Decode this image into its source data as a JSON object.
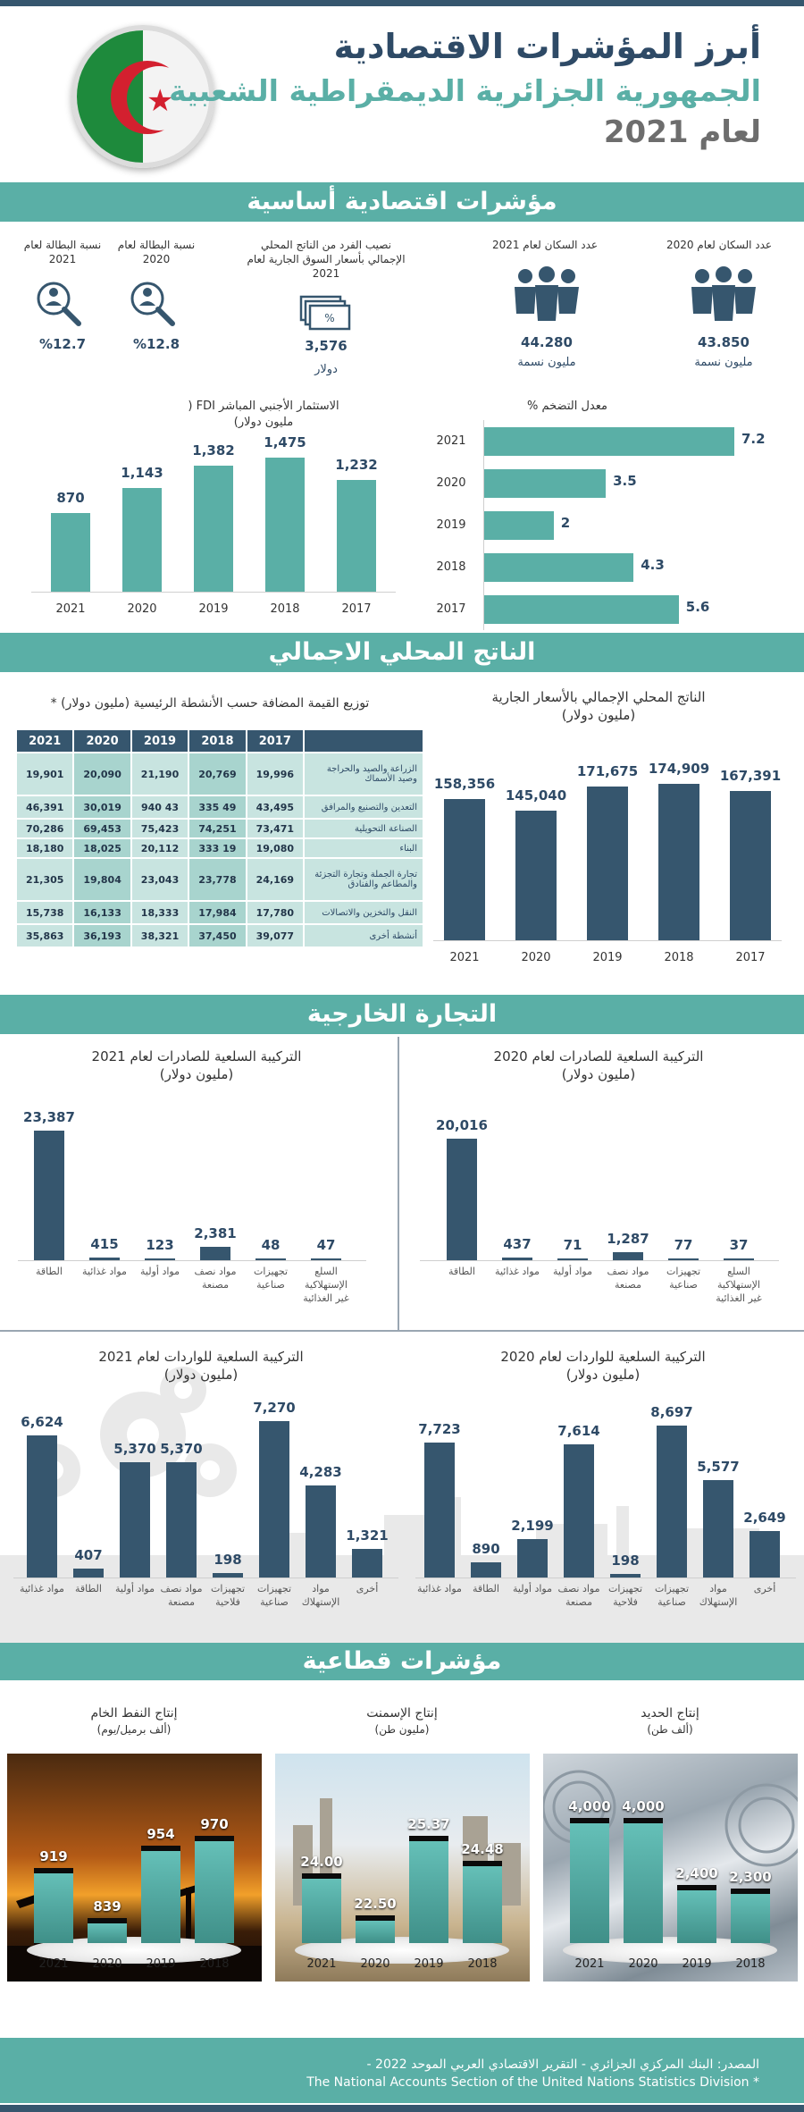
{
  "header": {
    "title": "أبرز المؤشرات الاقتصادية",
    "subtitle": "الجمهورية الجزائرية الديمقراطية الشعبية",
    "year": "لعام 2021"
  },
  "sections": {
    "basic": "مؤشرات اقتصادية أساسية",
    "gdp": "الناتج المحلي الاجمالي",
    "trade": "التجارة الخارجية",
    "sector": "مؤشرات قطاعية"
  },
  "indicators": {
    "pop2020": {
      "label": "عدد السكان لعام 2020",
      "value": "43.850",
      "unit": "مليون نسمة"
    },
    "pop2021": {
      "label": "عدد السكان لعام 2021",
      "value": "44.280",
      "unit": "مليون نسمة"
    },
    "gdppc": {
      "label": "نصيب الفرد من الناتج المحلي الإجمالي بأسعار السوق الجارية لعام 2021",
      "value": "3,576",
      "unit": "دولار"
    },
    "unemp2020": {
      "label": "نسبة البطالة لعام 2020",
      "value": "%12.8"
    },
    "unemp2021": {
      "label": "نسبة البطالة لعام 2021",
      "value": "%12.7"
    }
  },
  "colors": {
    "teal": "#5aafa6",
    "navy": "#36566e",
    "light_teal": "#c8e4e0"
  },
  "chart_data": [
    {
      "type": "bar",
      "title": "الاستثمار الأجنبي المباشر FDI ( مليون دولار)",
      "categories": [
        "2021",
        "2020",
        "2019",
        "2018",
        "2017"
      ],
      "values": [
        870,
        1143,
        1382,
        1475,
        1232
      ],
      "value_labels": [
        "870",
        "1,143",
        "1,382",
        "1,475",
        "1,232"
      ]
    },
    {
      "type": "bar",
      "orientation": "horizontal",
      "title": "معدل التضخم %",
      "categories": [
        "2021",
        "2020",
        "2019",
        "2018",
        "2017"
      ],
      "values": [
        7.2,
        3.5,
        2,
        4.3,
        5.6
      ],
      "value_labels": [
        "7.2",
        "3.5",
        "2",
        "4.3",
        "5.6"
      ]
    },
    {
      "type": "bar",
      "title": "الناتج المحلي الإجمالي بالأسعار الجارية (مليون دولار)",
      "categories": [
        "2021",
        "2020",
        "2019",
        "2018",
        "2017"
      ],
      "values": [
        158356,
        145040,
        171675,
        174909,
        167391
      ],
      "value_labels": [
        "158,356",
        "145,040",
        "171,675",
        "174,909",
        "167,391"
      ]
    },
    {
      "type": "table",
      "title": "توزيع القيمة المضافة حسب الأنشطة الرئيسية (مليون دولار) *",
      "columns": [
        "2017",
        "2018",
        "2019",
        "2020",
        "2021"
      ],
      "rows": [
        {
          "activity": "الزراعة والصيد والحراجة وصيد الأسماك",
          "values": [
            "19,996",
            "20,769",
            "21,190",
            "20,090",
            "19,901"
          ]
        },
        {
          "activity": "التعدين والتصنيع والمرافق",
          "values": [
            "43,495",
            "49 335",
            "43 940",
            "30,019",
            "46,391"
          ]
        },
        {
          "activity": "الصناعة التحويلية",
          "values": [
            "73,471",
            "74,251",
            "75,423",
            "69,453",
            "70,286"
          ]
        },
        {
          "activity": "البناء",
          "values": [
            "19,080",
            "19 333",
            "20,112",
            "18,025",
            "18,180"
          ]
        },
        {
          "activity": "تجارة الجملة وتجارة التجزئة والمطاعم والفنادق",
          "values": [
            "24,169",
            "23,778",
            "23,043",
            "19,804",
            "21,305"
          ]
        },
        {
          "activity": "النقل والتخزين والاتصالات",
          "values": [
            "17,780",
            "17,984",
            "18,333",
            "16,133",
            "15,738"
          ]
        },
        {
          "activity": "أنشطة أخرى",
          "values": [
            "39,077",
            "37,450",
            "38,321",
            "36,193",
            "35,863"
          ]
        }
      ]
    },
    {
      "type": "bar",
      "title": "التركيبة السلعية للصادرات لعام 2021 (مليون دولار)",
      "categories": [
        "الطاقة",
        "مواد غذائية",
        "مواد أولية",
        "مواد نصف مصنعة",
        "تجهيزات صناعية",
        "السلع الإستهلاكية غير الغذائية"
      ],
      "values": [
        23387,
        415,
        123,
        2381,
        48,
        47
      ],
      "value_labels": [
        "23,387",
        "415",
        "123",
        "2,381",
        "48",
        "47"
      ]
    },
    {
      "type": "bar",
      "title": "التركيبة السلعية للصادرات لعام 2020 (مليون دولار)",
      "categories": [
        "الطاقة",
        "مواد غذائية",
        "مواد أولية",
        "مواد نصف مصنعة",
        "تجهيزات صناعية",
        "السلع الإستهلاكية غير الغذائية"
      ],
      "values": [
        20016,
        437,
        71,
        1287,
        77,
        37
      ],
      "value_labels": [
        "20,016",
        "437",
        "71",
        "1,287",
        "77",
        "37"
      ]
    },
    {
      "type": "bar",
      "title": "التركيبة السلعية للواردات لعام 2021 (مليون دولار)",
      "categories": [
        "مواد غذائية",
        "الطاقة",
        "مواد أولية",
        "مواد نصف مصنعة",
        "تجهيزات فلاحية",
        "تجهيزات صناعية",
        "مواد الإستهلاك",
        "أخرى"
      ],
      "values": [
        6624,
        407,
        5370,
        5370,
        198,
        7270,
        4283,
        1321
      ],
      "value_labels": [
        "6,624",
        "407",
        "5,370",
        "5,370",
        "198",
        "7,270",
        "4,283",
        "1,321"
      ]
    },
    {
      "type": "bar",
      "title": "التركيبة السلعية للواردات لعام 2020 (مليون دولار)",
      "categories": [
        "مواد غذائية",
        "الطاقة",
        "مواد أولية",
        "مواد نصف مصنعة",
        "تجهيزات فلاحية",
        "تجهيزات صناعية",
        "مواد الإستهلاك",
        "أخرى"
      ],
      "values": [
        7723,
        890,
        2199,
        7614,
        198,
        8697,
        5577,
        2649
      ],
      "value_labels": [
        "7,723",
        "890",
        "2,199",
        "7,614",
        "198",
        "8,697",
        "5,577",
        "2,649"
      ]
    },
    {
      "type": "bar",
      "title": "إنتاج النفط الخام (ألف برميل/يوم)",
      "categories": [
        "2021",
        "2020",
        "2019",
        "2018"
      ],
      "values": [
        919,
        839,
        954,
        970
      ],
      "value_labels": [
        "919",
        "839",
        "954",
        "970"
      ]
    },
    {
      "type": "bar",
      "title": "إنتاج الإسمنت (مليون طن)",
      "categories": [
        "2021",
        "2020",
        "2019",
        "2018"
      ],
      "values": [
        24.0,
        22.5,
        25.37,
        24.48
      ],
      "value_labels": [
        "24.00",
        "22.50",
        "25.37",
        "24.48"
      ]
    },
    {
      "type": "bar",
      "title": "إنتاج الحديد (ألف طن)",
      "categories": [
        "2021",
        "2020",
        "2019",
        "2018"
      ],
      "values": [
        4000,
        4000,
        2400,
        2300
      ],
      "value_labels": [
        "4,000",
        "4,000",
        "2,400",
        "2,300"
      ]
    }
  ],
  "titles": {
    "fdi": "الاستثمار الأجنبي المباشر FDI ( مليون دولار)",
    "infl": "معدل التضخم %",
    "gdp1": "الناتج المحلي الإجمالي بالأسعار الجارية",
    "gdp2": "(مليون دولار)",
    "va": "توزيع القيمة المضافة حسب الأنشطة الرئيسية (مليون دولار) *",
    "ex21a": "التركيبة السلعية للصادرات لعام 2021",
    "ex20a": "التركيبة السلعية للصادرات لعام 2020",
    "im21a": "التركيبة السلعية للواردات لعام 2021",
    "im20a": "التركيبة السلعية للواردات لعام 2020",
    "musd": "(مليون دولار)",
    "oil1": "إنتاج النفط الخام",
    "oil2": "(ألف برميل/يوم)",
    "cem1": "إنتاج الإسمنت",
    "cem2": "(مليون طن)",
    "iron1": "إنتاج الحديد",
    "iron2": "(ألف طن)"
  },
  "footer": {
    "line1": "المصدر: البنك المركزي الجزائري  -  التقرير الاقتصادي العربي الموحد 2022  -",
    "line2": "The National Accounts Section of the United Nations Statistics Division *"
  }
}
